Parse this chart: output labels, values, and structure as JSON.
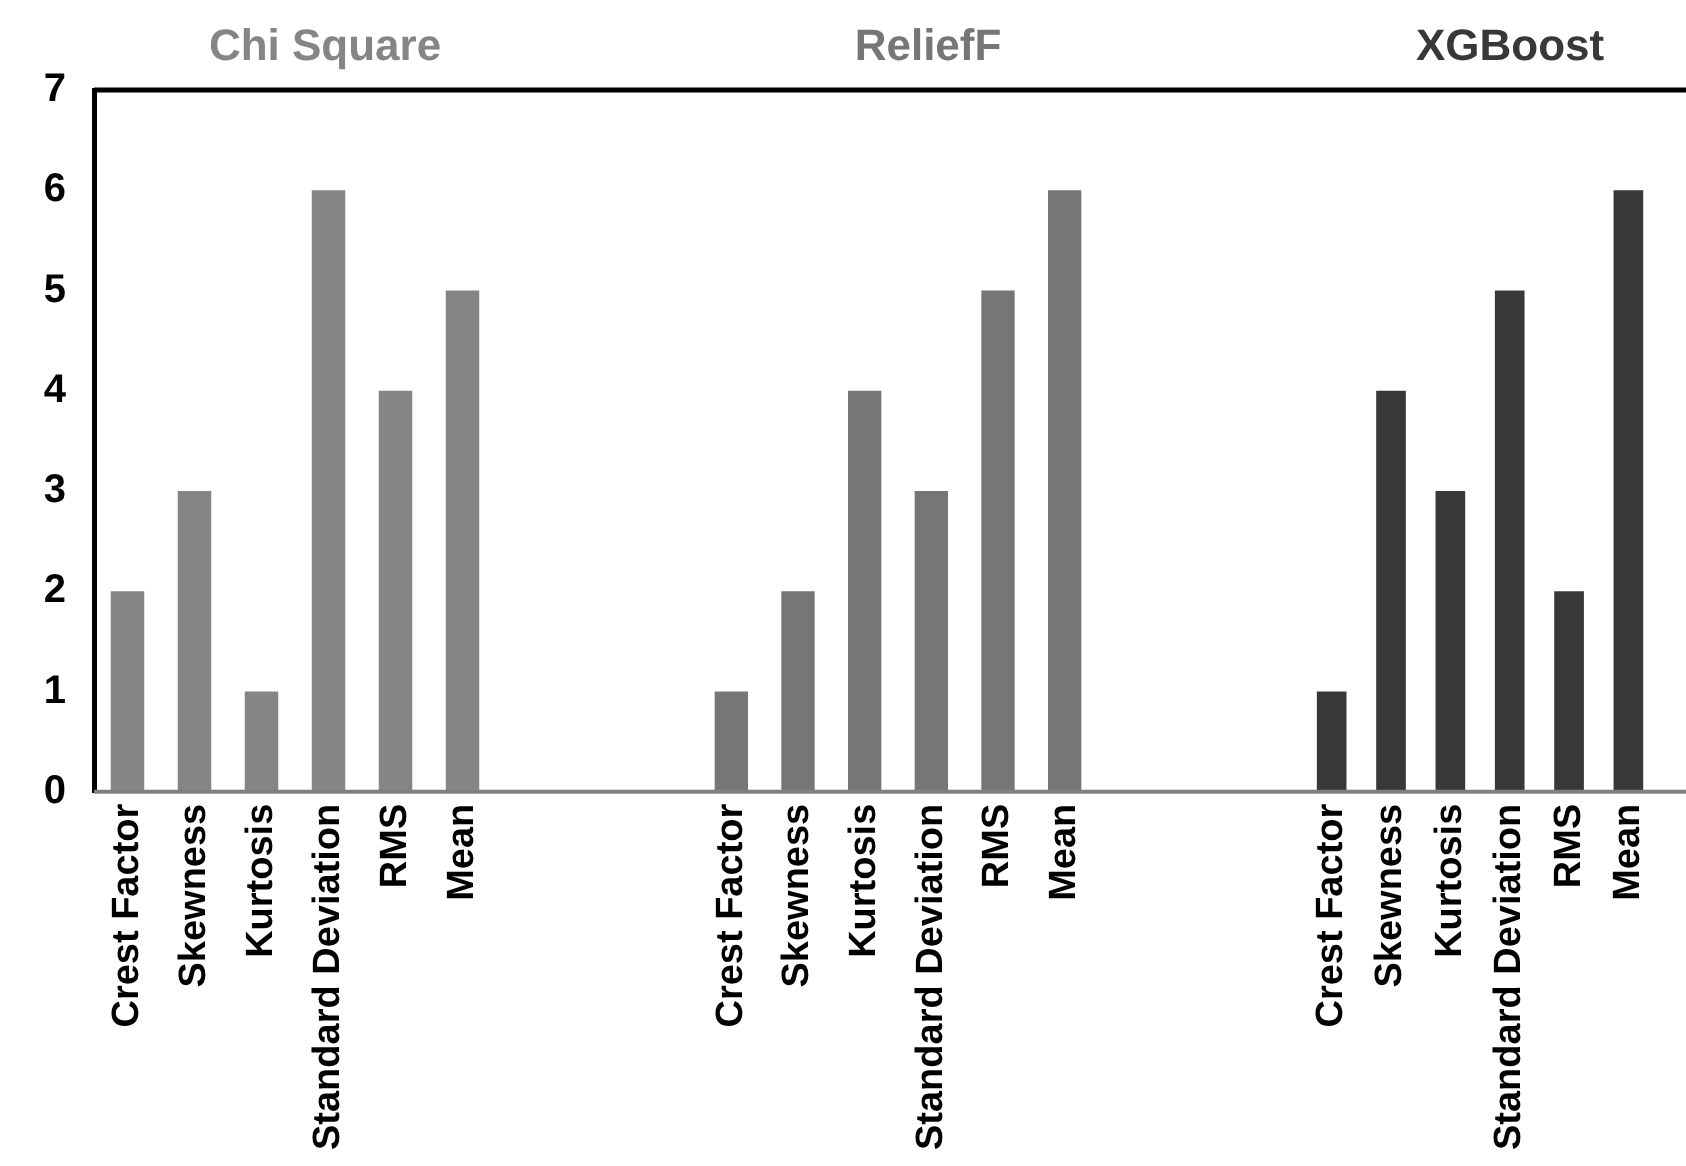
{
  "chart_data": [
    {
      "type": "bar",
      "title": "Chi Square",
      "categories": [
        "Crest Factor",
        "Skewness",
        "Kurtosis",
        "Standard Deviation",
        "RMS",
        "Mean"
      ],
      "values": [
        2,
        3,
        1,
        6,
        4,
        5
      ],
      "color": "#858585",
      "ylim": [
        0,
        7
      ],
      "yticks": [
        0,
        1,
        2,
        3,
        4,
        5,
        6,
        7
      ],
      "grid": false
    },
    {
      "type": "bar",
      "title": "ReliefF",
      "categories": [
        "Crest Factor",
        "Skewness",
        "Kurtosis",
        "Standard Deviation",
        "RMS",
        "Mean"
      ],
      "values": [
        1,
        2,
        4,
        3,
        5,
        6
      ],
      "color": "#767676",
      "ylim": [
        0,
        7
      ],
      "yticks": [
        0,
        1,
        2,
        3,
        4,
        5,
        6,
        7
      ],
      "grid": false,
      "tick_labels": "x"
    },
    {
      "type": "bar",
      "title": "XGBoost",
      "categories": [
        "Crest Factor",
        "Skewness",
        "Kurtosis",
        "Standard Deviation",
        "RMS",
        "Mean"
      ],
      "values": [
        1,
        4,
        3,
        5,
        2,
        6
      ],
      "color": "#383838",
      "ylim": [
        0,
        7
      ],
      "yticks": [
        0,
        1,
        2,
        3,
        4,
        5,
        6,
        7
      ],
      "grid": false,
      "tick_labels": "x"
    }
  ]
}
